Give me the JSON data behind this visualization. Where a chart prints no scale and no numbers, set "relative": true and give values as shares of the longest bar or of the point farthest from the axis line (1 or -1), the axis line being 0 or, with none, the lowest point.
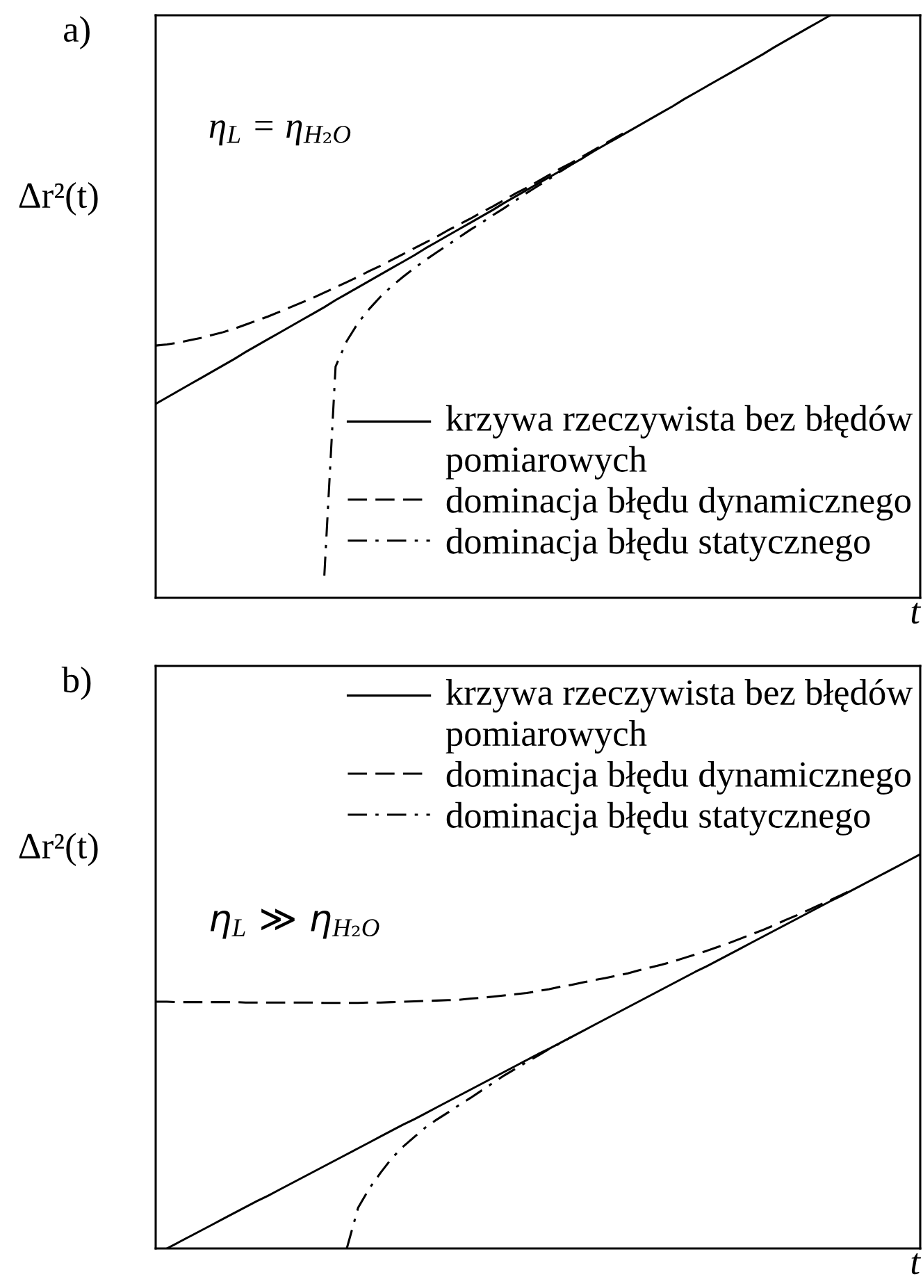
{
  "chart_data": [
    {
      "type": "line",
      "title": "a)",
      "ylabel": "Δr²(t)",
      "xlabel": "t",
      "annotations": [
        "η$_{L}$ = η$_{H₂O}$"
      ],
      "relative": true,
      "legend": "bottom right",
      "categories": [
        null,
        null,
        null,
        null,
        null,
        null,
        null,
        null,
        null,
        null,
        null,
        null,
        null,
        null,
        null,
        null,
        null,
        null,
        null,
        null,
        null,
        null,
        null,
        null,
        null,
        null,
        null,
        null,
        null,
        null,
        null,
        null,
        null,
        null,
        null,
        null,
        null,
        null,
        null,
        null,
        null,
        null,
        null,
        null,
        null,
        null,
        null,
        null,
        null,
        null,
        null,
        null,
        null,
        null,
        null,
        null,
        null,
        null,
        null,
        null,
        null,
        null,
        null,
        null,
        null,
        null,
        null,
        null,
        null
      ],
      "series": [
        {
          "name": "krzywa rzeczywista bez błędów\npomiarowych",
          "color": "#000000",
          "line_style": "solid",
          "values": [
            0.333,
            0.344,
            0.355,
            0.366,
            0.377,
            0.388,
            0.399,
            0.41,
            0.422,
            0.433,
            0.444,
            0.455,
            0.466,
            0.477,
            0.488,
            0.499,
            0.511,
            0.522,
            0.533,
            0.544,
            0.555,
            0.566,
            0.577,
            0.588,
            0.6,
            0.611,
            0.622,
            0.633,
            0.644,
            0.655,
            0.666,
            0.678,
            0.689,
            0.7,
            0.711,
            0.722,
            0.733,
            0.744,
            0.755,
            0.767,
            0.778,
            0.789,
            0.8,
            0.811,
            0.822,
            0.833,
            0.844,
            0.856,
            0.867,
            0.878,
            0.889,
            0.9,
            0.911,
            0.922,
            0.933,
            0.945,
            0.956,
            0.967,
            0.978,
            0.989,
            1.0,
            null,
            null,
            null,
            null,
            null,
            null,
            null,
            null
          ]
        },
        {
          "name": "dominacja błędu dynamicznego",
          "color": "#000000",
          "line_style": "dashed",
          "values": [
            0.433,
            0.435,
            0.438,
            0.442,
            0.446,
            0.451,
            0.456,
            0.462,
            0.469,
            0.476,
            0.483,
            0.491,
            0.499,
            0.507,
            0.515,
            0.524,
            0.533,
            0.542,
            0.551,
            0.561,
            0.57,
            0.58,
            0.59,
            0.6,
            0.61,
            0.62,
            0.631,
            0.641,
            0.651,
            0.662,
            0.672,
            0.683,
            0.694,
            0.704,
            0.715,
            0.726,
            0.737,
            0.747,
            0.758,
            0.769,
            0.78,
            0.791,
            0.802,
            null,
            null,
            null,
            null,
            null,
            null,
            null,
            null,
            null,
            null,
            null,
            null,
            null,
            null,
            null,
            null,
            null,
            null,
            null,
            null,
            null,
            null,
            null,
            null,
            null,
            null
          ]
        },
        {
          "name": "dominacja błędu statycznego",
          "color": "#000000",
          "line_style": "dashdot",
          "values": [
            null,
            null,
            null,
            null,
            null,
            null,
            null,
            null,
            null,
            null,
            null,
            null,
            null,
            null,
            null,
            0.038,
            0.397,
            0.441,
            0.472,
            0.496,
            0.517,
            0.535,
            0.551,
            0.566,
            0.58,
            0.593,
            0.606,
            0.619,
            0.632,
            0.644,
            0.657,
            0.669,
            0.682,
            0.695,
            0.707,
            0.719,
            0.732,
            0.744,
            0.755,
            null,
            null,
            null,
            null,
            null,
            null,
            null,
            null,
            null,
            null,
            null,
            null,
            null,
            null,
            null,
            null,
            null,
            null,
            null,
            null,
            null,
            null,
            null,
            null,
            null,
            null,
            null,
            null,
            null,
            null
          ]
        }
      ]
    },
    {
      "type": "line",
      "title": "b)",
      "ylabel": "Δr²(t)",
      "xlabel": "t",
      "annotations": [
        "η$_{L}$ ≫ η$_{H₂O}$"
      ],
      "relative": true,
      "legend": "top right",
      "categories": [
        null,
        null,
        null,
        null,
        null,
        null,
        null,
        null,
        null,
        null,
        null,
        null,
        null,
        null,
        null,
        null,
        null,
        null,
        null,
        null,
        null,
        null,
        null,
        null,
        null,
        null,
        null,
        null,
        null,
        null,
        null,
        null,
        null,
        null,
        null,
        null,
        null,
        null,
        null,
        null,
        null,
        null,
        null,
        null,
        null,
        null,
        null,
        null,
        null,
        null,
        null,
        null,
        null,
        null,
        null,
        null,
        null,
        null,
        null,
        null,
        null,
        null,
        null,
        null,
        null,
        null,
        null,
        null,
        null
      ],
      "series": [
        {
          "name": "krzywa rzeczywista bez błędów\npomiarowych",
          "color": "#000000",
          "line_style": "solid",
          "values": [
            null,
            0.0,
            0.015,
            0.03,
            0.045,
            0.06,
            0.075,
            0.09,
            0.105,
            0.12,
            0.134,
            0.149,
            0.164,
            0.179,
            0.194,
            0.209,
            0.224,
            0.239,
            0.254,
            0.269,
            0.284,
            0.299,
            0.314,
            0.328,
            0.343,
            0.358,
            0.373,
            0.388,
            0.403,
            0.418,
            0.433,
            0.448,
            0.463,
            0.478,
            0.493,
            0.507,
            0.522,
            0.537,
            0.552,
            0.567,
            0.582,
            0.597,
            0.612,
            0.627,
            0.642,
            0.657,
            0.672,
            0.687,
            0.702,
            0.716,
            0.731,
            0.746,
            0.761,
            0.776,
            0.791,
            0.806,
            0.821,
            0.836,
            0.851,
            0.866,
            0.881,
            0.895,
            0.91,
            0.925,
            0.94,
            0.955,
            0.97,
            0.985,
            1.0
          ]
        },
        {
          "name": "dominacja błędu dynamicznego",
          "color": "#000000",
          "line_style": "dashed",
          "values": [
            0.626,
            0.626,
            0.625,
            0.625,
            0.625,
            0.625,
            0.625,
            0.625,
            0.624,
            0.624,
            0.624,
            0.624,
            0.624,
            0.624,
            0.624,
            0.623,
            0.623,
            0.623,
            0.623,
            0.624,
            0.624,
            0.625,
            0.626,
            0.627,
            0.628,
            0.629,
            0.63,
            0.631,
            0.634,
            0.636,
            0.639,
            0.642,
            0.645,
            0.648,
            0.653,
            0.658,
            0.664,
            0.669,
            0.675,
            0.681,
            0.686,
            0.692,
            0.698,
            0.706,
            0.713,
            0.72,
            0.728,
            0.737,
            0.746,
            0.755,
            0.765,
            0.775,
            0.786,
            0.797,
            0.808,
            0.82,
            0.833,
            0.845,
            0.858,
            0.871,
            0.884,
            0.897,
            0.911,
            null,
            null,
            null,
            null,
            null,
            null
          ]
        },
        {
          "name": "dominacja błędu statycznego",
          "color": "#000000",
          "line_style": "dashdot",
          "values": [
            null,
            null,
            null,
            null,
            null,
            null,
            null,
            null,
            null,
            null,
            null,
            null,
            null,
            null,
            null,
            null,
            null,
            0.0,
            0.103,
            0.152,
            0.192,
            0.229,
            0.258,
            0.283,
            0.307,
            0.327,
            0.345,
            0.364,
            0.382,
            0.401,
            0.42,
            0.439,
            0.456,
            0.473,
            0.489,
            0.506,
            0.521,
            0.537,
            null,
            null,
            null,
            null,
            null,
            null,
            null,
            null,
            null,
            null,
            null,
            null,
            null,
            null,
            null,
            null,
            null,
            null,
            null,
            null,
            null,
            null,
            null,
            null,
            null,
            null,
            null,
            null,
            null,
            null,
            null
          ]
        }
      ]
    }
  ]
}
